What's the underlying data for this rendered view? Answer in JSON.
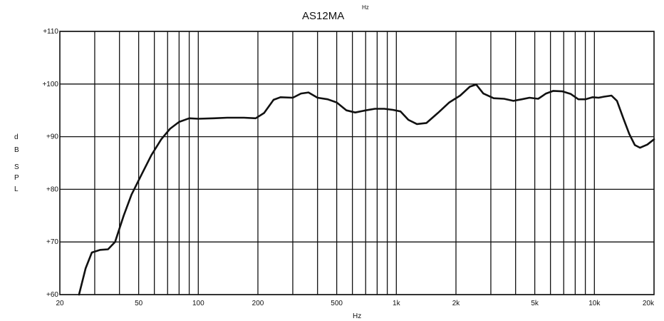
{
  "chart_data": {
    "type": "line",
    "title": "AS12MA",
    "title_superscript": "Hz",
    "xlabel": "Hz",
    "ylabel_letters": [
      "d",
      "B",
      "S",
      "P",
      "L"
    ],
    "x_scale": "log",
    "xlim": [
      20,
      20000
    ],
    "ylim": [
      60,
      110
    ],
    "grid": true,
    "y_ticks": [
      {
        "value": 110,
        "label": "+110"
      },
      {
        "value": 100,
        "label": "+100"
      },
      {
        "value": 90,
        "label": "+90"
      },
      {
        "value": 80,
        "label": "+80"
      },
      {
        "value": 70,
        "label": "+70"
      },
      {
        "value": 60,
        "label": "+60"
      }
    ],
    "x_ticks": [
      {
        "value": 20,
        "label": "20"
      },
      {
        "value": 50,
        "label": "50"
      },
      {
        "value": 100,
        "label": "100"
      },
      {
        "value": 200,
        "label": "200"
      },
      {
        "value": 500,
        "label": "500"
      },
      {
        "value": 1000,
        "label": "1k"
      },
      {
        "value": 2000,
        "label": "2k"
      },
      {
        "value": 5000,
        "label": "5k"
      },
      {
        "value": 10000,
        "label": "10k"
      },
      {
        "value": 20000,
        "label": "20k"
      }
    ],
    "x_gridlines": [
      30,
      40,
      50,
      60,
      70,
      80,
      90,
      100,
      200,
      300,
      400,
      500,
      600,
      700,
      800,
      900,
      1000,
      2000,
      3000,
      4000,
      5000,
      6000,
      7000,
      8000,
      9000,
      10000
    ],
    "series": [
      {
        "values": [
          [
            25,
            60
          ],
          [
            27,
            65
          ],
          [
            29,
            68
          ],
          [
            32,
            68.5
          ],
          [
            35,
            68.6
          ],
          [
            38,
            70
          ],
          [
            42,
            75
          ],
          [
            46,
            79
          ],
          [
            52,
            83
          ],
          [
            58,
            86.5
          ],
          [
            65,
            89.5
          ],
          [
            72,
            91.5
          ],
          [
            80,
            92.8
          ],
          [
            90,
            93.5
          ],
          [
            100,
            93.4
          ],
          [
            120,
            93.5
          ],
          [
            140,
            93.6
          ],
          [
            170,
            93.6
          ],
          [
            195,
            93.5
          ],
          [
            215,
            94.5
          ],
          [
            240,
            97
          ],
          [
            260,
            97.5
          ],
          [
            300,
            97.4
          ],
          [
            330,
            98.2
          ],
          [
            360,
            98.4
          ],
          [
            400,
            97.4
          ],
          [
            450,
            97.1
          ],
          [
            500,
            96.5
          ],
          [
            560,
            95
          ],
          [
            620,
            94.6
          ],
          [
            700,
            95
          ],
          [
            780,
            95.3
          ],
          [
            870,
            95.3
          ],
          [
            960,
            95.1
          ],
          [
            1050,
            94.8
          ],
          [
            1150,
            93.2
          ],
          [
            1270,
            92.4
          ],
          [
            1420,
            92.6
          ],
          [
            1620,
            94.5
          ],
          [
            1850,
            96.5
          ],
          [
            2100,
            97.8
          ],
          [
            2350,
            99.5
          ],
          [
            2530,
            99.9
          ],
          [
            2750,
            98.2
          ],
          [
            3100,
            97.3
          ],
          [
            3500,
            97.2
          ],
          [
            3900,
            96.8
          ],
          [
            4300,
            97.1
          ],
          [
            4700,
            97.4
          ],
          [
            5200,
            97.2
          ],
          [
            5700,
            98.2
          ],
          [
            6200,
            98.7
          ],
          [
            6900,
            98.6
          ],
          [
            7600,
            98.1
          ],
          [
            8300,
            97.1
          ],
          [
            9000,
            97.1
          ],
          [
            9800,
            97.5
          ],
          [
            10500,
            97.4
          ],
          [
            11200,
            97.6
          ],
          [
            12200,
            97.8
          ],
          [
            13000,
            96.8
          ],
          [
            14000,
            93.5
          ],
          [
            15000,
            90.5
          ],
          [
            16000,
            88.4
          ],
          [
            17000,
            87.9
          ],
          [
            18500,
            88.5
          ],
          [
            20000,
            89.5
          ]
        ]
      }
    ]
  }
}
